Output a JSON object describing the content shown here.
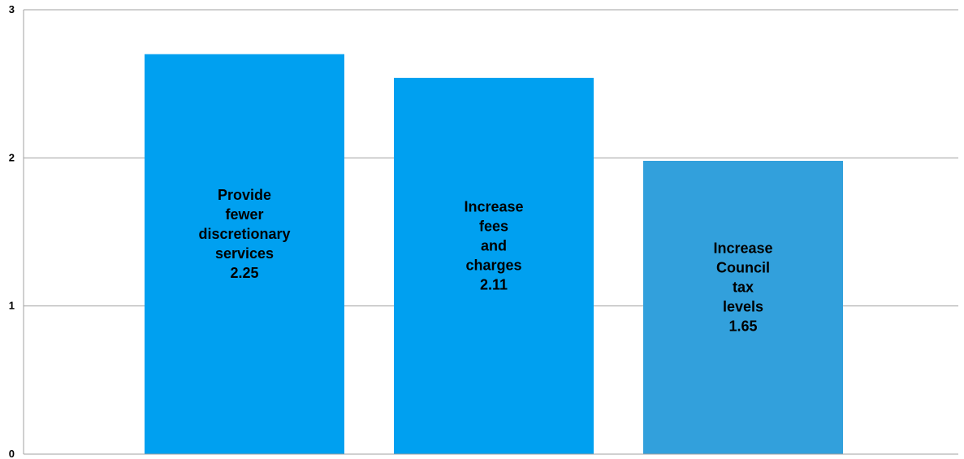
{
  "chart_data": {
    "type": "bar",
    "title": "",
    "xlabel": "",
    "ylabel": "",
    "ylim": [
      0,
      3
    ],
    "yticks": [
      0,
      1,
      2,
      3
    ],
    "grid": true,
    "legend": "none",
    "categories": [
      "Provide fewer discretionary services",
      "Increase fees and charges",
      "Increase Council tax levels"
    ],
    "values": [
      2.25,
      2.11,
      1.65
    ],
    "value_labels": [
      "2.25",
      "2.11",
      "1.65"
    ],
    "label_lines": [
      [
        "Provide",
        "fewer",
        "discretionary",
        "services"
      ],
      [
        "Increase",
        "fees",
        "and",
        "charges"
      ],
      [
        "Increase",
        "Council",
        "tax",
        "levels"
      ]
    ],
    "bar_heights": [
      2.7,
      2.54,
      1.98
    ],
    "colors": [
      "#00a0f0",
      "#00a0f0",
      "#32a0dc"
    ]
  }
}
